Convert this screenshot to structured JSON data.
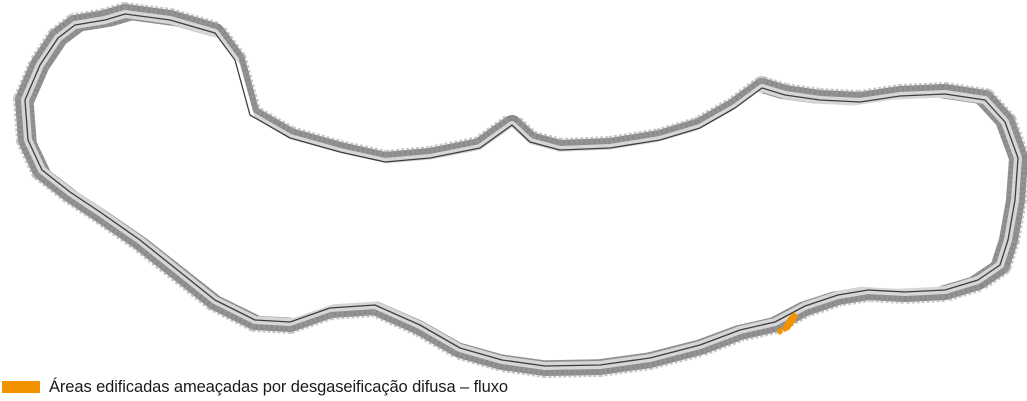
{
  "map": {
    "colors": {
      "coastal_band": "#8a8a8a",
      "inner_fringe": "#d6d6d6",
      "coastline": "#3d3d3d",
      "threatened_area": "#f39200",
      "background": "#ffffff"
    }
  },
  "legend": {
    "items": [
      {
        "label": "Áreas edificadas ameaçadas por desgaseificação difusa – fluxo",
        "color": "#f39200"
      }
    ]
  }
}
